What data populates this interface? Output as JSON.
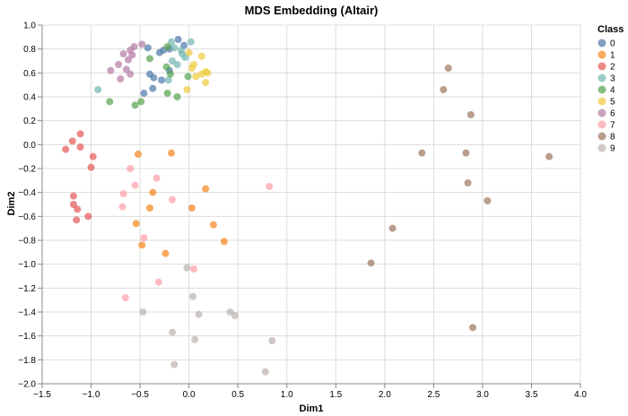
{
  "chart_data": {
    "type": "scatter",
    "title": "MDS Embedding (Altair)",
    "xlabel": "Dim1",
    "ylabel": "Dim2",
    "xlim": [
      -1.5,
      4.0
    ],
    "ylim": [
      -2.0,
      1.0
    ],
    "x_ticks": [
      "−1.5",
      "−1.0",
      "−0.5",
      "0.0",
      "0.5",
      "1.0",
      "1.5",
      "2.0",
      "2.5",
      "3.0",
      "3.5",
      "4.0"
    ],
    "y_ticks": [
      "1.0",
      "0.8",
      "0.6",
      "0.4",
      "0.2",
      "0.0",
      "−0.2",
      "−0.4",
      "−0.6",
      "−0.8",
      "−1.0",
      "−1.2",
      "−1.4",
      "−1.6",
      "−1.8",
      "−2.0"
    ],
    "grid": true,
    "legend": {
      "title": "Class",
      "position": "right"
    },
    "series": [
      {
        "name": "0",
        "color": "#4c78a8",
        "points": [
          [
            -0.42,
            0.81
          ],
          [
            -0.3,
            0.77
          ],
          [
            -0.26,
            0.79
          ],
          [
            -0.2,
            0.8
          ],
          [
            -0.11,
            0.88
          ],
          [
            -0.05,
            0.83
          ],
          [
            -0.4,
            0.59
          ],
          [
            -0.36,
            0.56
          ],
          [
            -0.28,
            0.54
          ],
          [
            -0.2,
            0.62
          ],
          [
            -0.37,
            0.47
          ],
          [
            -0.46,
            0.43
          ]
        ]
      },
      {
        "name": "1",
        "color": "#f58518",
        "points": [
          [
            -0.52,
            -0.08
          ],
          [
            -0.18,
            -0.07
          ],
          [
            -0.37,
            -0.4
          ],
          [
            0.17,
            -0.37
          ],
          [
            -0.4,
            -0.53
          ],
          [
            0.03,
            -0.53
          ],
          [
            -0.54,
            -0.66
          ],
          [
            0.25,
            -0.67
          ],
          [
            -0.48,
            -0.84
          ],
          [
            0.36,
            -0.81
          ],
          [
            -0.24,
            -0.91
          ]
        ]
      },
      {
        "name": "2",
        "color": "#e45756",
        "points": [
          [
            -1.11,
            0.09
          ],
          [
            -1.19,
            0.03
          ],
          [
            -1.11,
            -0.02
          ],
          [
            -1.26,
            -0.04
          ],
          [
            -0.98,
            -0.1
          ],
          [
            -1.0,
            -0.19
          ],
          [
            -1.18,
            -0.43
          ],
          [
            -1.18,
            -0.5
          ],
          [
            -1.14,
            -0.54
          ],
          [
            -1.03,
            -0.6
          ],
          [
            -1.15,
            -0.63
          ]
        ]
      },
      {
        "name": "3",
        "color": "#72b7b2",
        "points": [
          [
            -0.93,
            0.46
          ],
          [
            -0.18,
            0.86
          ],
          [
            -0.15,
            0.81
          ],
          [
            -0.08,
            0.79
          ],
          [
            0.02,
            0.86
          ],
          [
            -0.07,
            0.76
          ],
          [
            -0.04,
            0.73
          ],
          [
            -0.17,
            0.7
          ],
          [
            -0.12,
            0.67
          ],
          [
            -0.21,
            0.54
          ]
        ]
      },
      {
        "name": "4",
        "color": "#54a24b",
        "points": [
          [
            -0.81,
            0.36
          ],
          [
            -0.4,
            0.72
          ],
          [
            -0.22,
            0.82
          ],
          [
            -0.23,
            0.65
          ],
          [
            -0.19,
            0.59
          ],
          [
            -0.01,
            0.57
          ],
          [
            -0.22,
            0.43
          ],
          [
            -0.12,
            0.4
          ],
          [
            -0.49,
            0.36
          ],
          [
            -0.55,
            0.33
          ]
        ]
      },
      {
        "name": "5",
        "color": "#eeca3b",
        "points": [
          [
            0.0,
            0.77
          ],
          [
            0.13,
            0.74
          ],
          [
            0.05,
            0.67
          ],
          [
            0.03,
            0.64
          ],
          [
            0.17,
            0.61
          ],
          [
            0.13,
            0.59
          ],
          [
            0.19,
            0.6
          ],
          [
            0.07,
            0.57
          ],
          [
            0.17,
            0.52
          ],
          [
            -0.02,
            0.46
          ]
        ]
      },
      {
        "name": "6",
        "color": "#b279a2",
        "points": [
          [
            -0.56,
            0.82
          ],
          [
            -0.48,
            0.84
          ],
          [
            -0.6,
            0.79
          ],
          [
            -0.67,
            0.76
          ],
          [
            -0.58,
            0.75
          ],
          [
            -0.62,
            0.71
          ],
          [
            -0.72,
            0.67
          ],
          [
            -0.8,
            0.62
          ],
          [
            -0.64,
            0.63
          ],
          [
            -0.6,
            0.59
          ],
          [
            -0.7,
            0.55
          ]
        ]
      },
      {
        "name": "7",
        "color": "#ff9da6",
        "points": [
          [
            -0.6,
            -0.2
          ],
          [
            -0.33,
            -0.28
          ],
          [
            -0.55,
            -0.34
          ],
          [
            0.82,
            -0.35
          ],
          [
            -0.67,
            -0.41
          ],
          [
            -0.17,
            -0.46
          ],
          [
            -0.68,
            -0.52
          ],
          [
            -0.46,
            -0.78
          ],
          [
            0.05,
            -1.04
          ],
          [
            -0.31,
            -1.15
          ],
          [
            -0.65,
            -1.28
          ]
        ]
      },
      {
        "name": "8",
        "color": "#9d755d",
        "points": [
          [
            2.65,
            0.64
          ],
          [
            2.6,
            0.46
          ],
          [
            2.88,
            0.25
          ],
          [
            2.38,
            -0.07
          ],
          [
            2.83,
            -0.07
          ],
          [
            3.68,
            -0.1
          ],
          [
            2.85,
            -0.32
          ],
          [
            3.05,
            -0.47
          ],
          [
            2.08,
            -0.7
          ],
          [
            1.86,
            -0.99
          ],
          [
            2.9,
            -1.53
          ]
        ]
      },
      {
        "name": "9",
        "color": "#bab0ac",
        "points": [
          [
            -0.02,
            -1.03
          ],
          [
            0.04,
            -1.27
          ],
          [
            -0.47,
            -1.4
          ],
          [
            0.1,
            -1.42
          ],
          [
            0.42,
            -1.4
          ],
          [
            0.47,
            -1.43
          ],
          [
            -0.17,
            -1.57
          ],
          [
            0.06,
            -1.63
          ],
          [
            0.85,
            -1.64
          ],
          [
            -0.15,
            -1.84
          ],
          [
            0.78,
            -1.9
          ]
        ]
      }
    ]
  }
}
